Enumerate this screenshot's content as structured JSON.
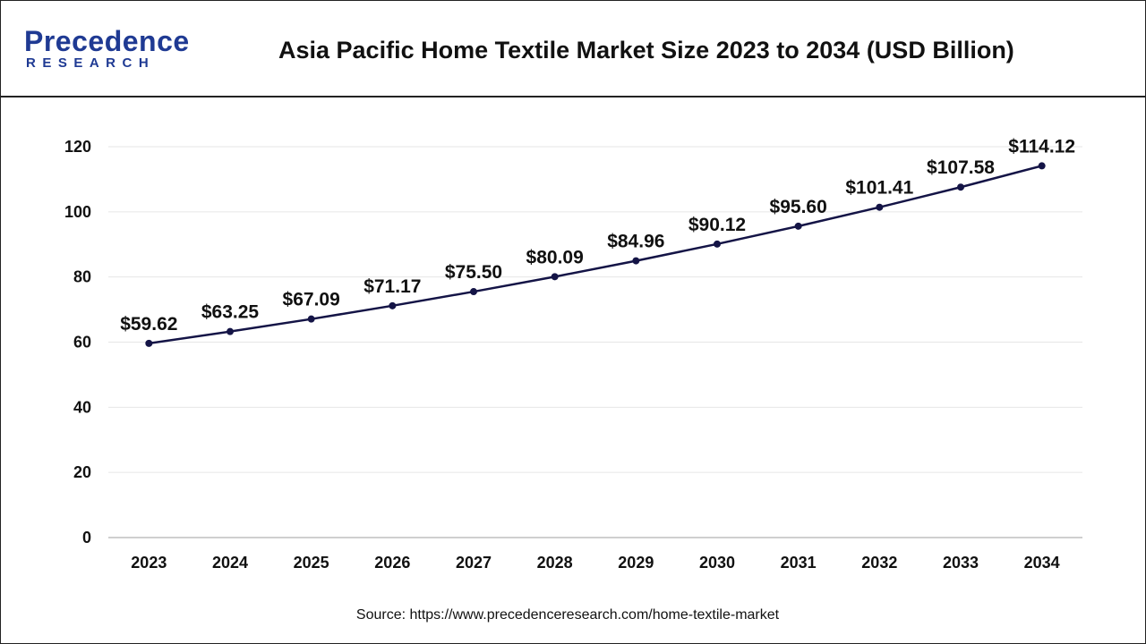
{
  "header": {
    "logo_text": "Precedence",
    "logo_subtext": "RESEARCH",
    "title": "Asia Pacific Home Textile Market Size 2023 to 2034 (USD Billion)"
  },
  "colors": {
    "line": "#141446",
    "brand": "#1f3a93",
    "grid": "#e6e6e6",
    "axis": "#bfbfbf"
  },
  "chart_data": {
    "type": "line",
    "title": "Asia Pacific Home Textile Market Size 2023 to 2034 (USD Billion)",
    "categories": [
      "2023",
      "2024",
      "2025",
      "2026",
      "2027",
      "2028",
      "2029",
      "2030",
      "2031",
      "2032",
      "2033",
      "2034"
    ],
    "series": [
      {
        "values": [
          59.62,
          63.25,
          67.09,
          71.17,
          75.5,
          80.09,
          84.96,
          90.12,
          95.6,
          101.41,
          107.58,
          114.12
        ]
      }
    ],
    "data_labels": [
      "$59.62",
      "$63.25",
      "$67.09",
      "$71.17",
      "$75.50",
      "$80.09",
      "$84.96",
      "$90.12",
      "$95.60",
      "$101.41",
      "$107.58",
      "$114.12"
    ],
    "yticks": [
      0,
      20,
      40,
      60,
      80,
      100,
      120
    ],
    "ylim": [
      0,
      120
    ],
    "xlabel": "",
    "ylabel": "",
    "grid": true,
    "legend": "none"
  },
  "source": "Source: https://www.precedenceresearch.com/home-textile-market"
}
